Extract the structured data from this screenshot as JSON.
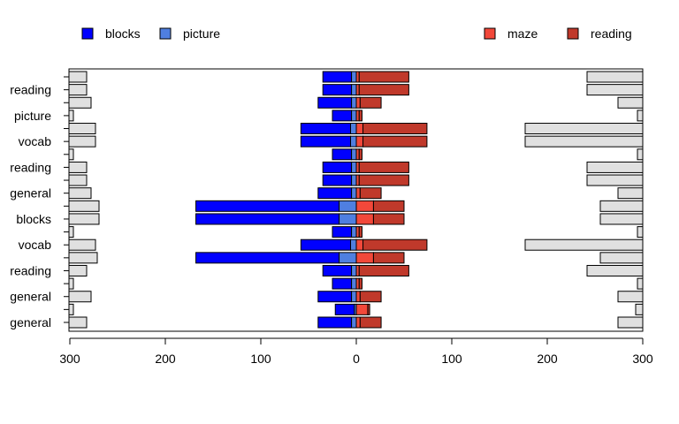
{
  "chart_data": {
    "type": "bar",
    "orientation": "horizontal",
    "layout": "back-to-back stacked bars with side panels",
    "xlim": [
      -300,
      300
    ],
    "x_tick_values": [
      -300,
      -200,
      -100,
      0,
      100,
      200,
      300
    ],
    "x_tick_labels": [
      "300",
      "200",
      "100",
      "0",
      "100",
      "200",
      "300"
    ],
    "row_labels": [
      "general",
      "",
      "general",
      "",
      "reading",
      "",
      "vocab",
      "",
      "blocks",
      "",
      "general",
      "",
      "reading",
      "",
      "vocab",
      "",
      "picture",
      "",
      "reading",
      ""
    ],
    "legend_left": [
      {
        "label": "blocks",
        "color": "#0000ff"
      },
      {
        "label": "picture",
        "color": "#4f7fe0"
      }
    ],
    "legend_right": [
      {
        "label": "maze",
        "color": "#f2483a"
      },
      {
        "label": "reading",
        "color": "#c0392b"
      }
    ],
    "colors": {
      "blocks": "#0000ff",
      "picture": "#4f7fe0",
      "maze": "#f2483a",
      "reading": "#c0392b",
      "side": "#e0e0e0"
    },
    "rows": [
      {
        "blocks": 35,
        "picture": 5,
        "maze": 4,
        "reading": 22,
        "side_left": 20,
        "side_right": 28
      },
      {
        "blocks": 20,
        "picture": 2,
        "maze": 12,
        "reading": 2,
        "side_left": 5,
        "side_right": 8
      },
      {
        "blocks": 35,
        "picture": 5,
        "maze": 4,
        "reading": 22,
        "side_left": 25,
        "side_right": 28
      },
      {
        "blocks": 20,
        "picture": 5,
        "maze": 3,
        "reading": 3,
        "side_left": 5,
        "side_right": 6
      },
      {
        "blocks": 30,
        "picture": 5,
        "maze": 3,
        "reading": 52,
        "side_left": 20,
        "side_right": 63
      },
      {
        "blocks": 150,
        "picture": 18,
        "maze": 18,
        "reading": 32,
        "side_left": 32,
        "side_right": 48
      },
      {
        "blocks": 52,
        "picture": 6,
        "maze": 7,
        "reading": 67,
        "side_left": 30,
        "side_right": 133
      },
      {
        "blocks": 20,
        "picture": 5,
        "maze": 3,
        "reading": 3,
        "side_left": 5,
        "side_right": 6
      },
      {
        "blocks": 150,
        "picture": 18,
        "maze": 18,
        "reading": 32,
        "side_left": 34,
        "side_right": 48
      },
      {
        "blocks": 150,
        "picture": 18,
        "maze": 18,
        "reading": 32,
        "side_left": 34,
        "side_right": 48
      },
      {
        "blocks": 35,
        "picture": 5,
        "maze": 4,
        "reading": 22,
        "side_left": 25,
        "side_right": 28
      },
      {
        "blocks": 30,
        "picture": 5,
        "maze": 3,
        "reading": 52,
        "side_left": 20,
        "side_right": 63
      },
      {
        "blocks": 30,
        "picture": 5,
        "maze": 3,
        "reading": 52,
        "side_left": 20,
        "side_right": 63
      },
      {
        "blocks": 20,
        "picture": 5,
        "maze": 3,
        "reading": 3,
        "side_left": 5,
        "side_right": 6
      },
      {
        "blocks": 52,
        "picture": 6,
        "maze": 7,
        "reading": 67,
        "side_left": 30,
        "side_right": 133
      },
      {
        "blocks": 52,
        "picture": 6,
        "maze": 7,
        "reading": 67,
        "side_left": 30,
        "side_right": 133
      },
      {
        "blocks": 20,
        "picture": 5,
        "maze": 3,
        "reading": 3,
        "side_left": 5,
        "side_right": 6
      },
      {
        "blocks": 35,
        "picture": 5,
        "maze": 4,
        "reading": 22,
        "side_left": 25,
        "side_right": 28
      },
      {
        "blocks": 30,
        "picture": 5,
        "maze": 3,
        "reading": 52,
        "side_left": 20,
        "side_right": 63
      },
      {
        "blocks": 30,
        "picture": 5,
        "maze": 3,
        "reading": 52,
        "side_left": 20,
        "side_right": 63
      }
    ]
  }
}
